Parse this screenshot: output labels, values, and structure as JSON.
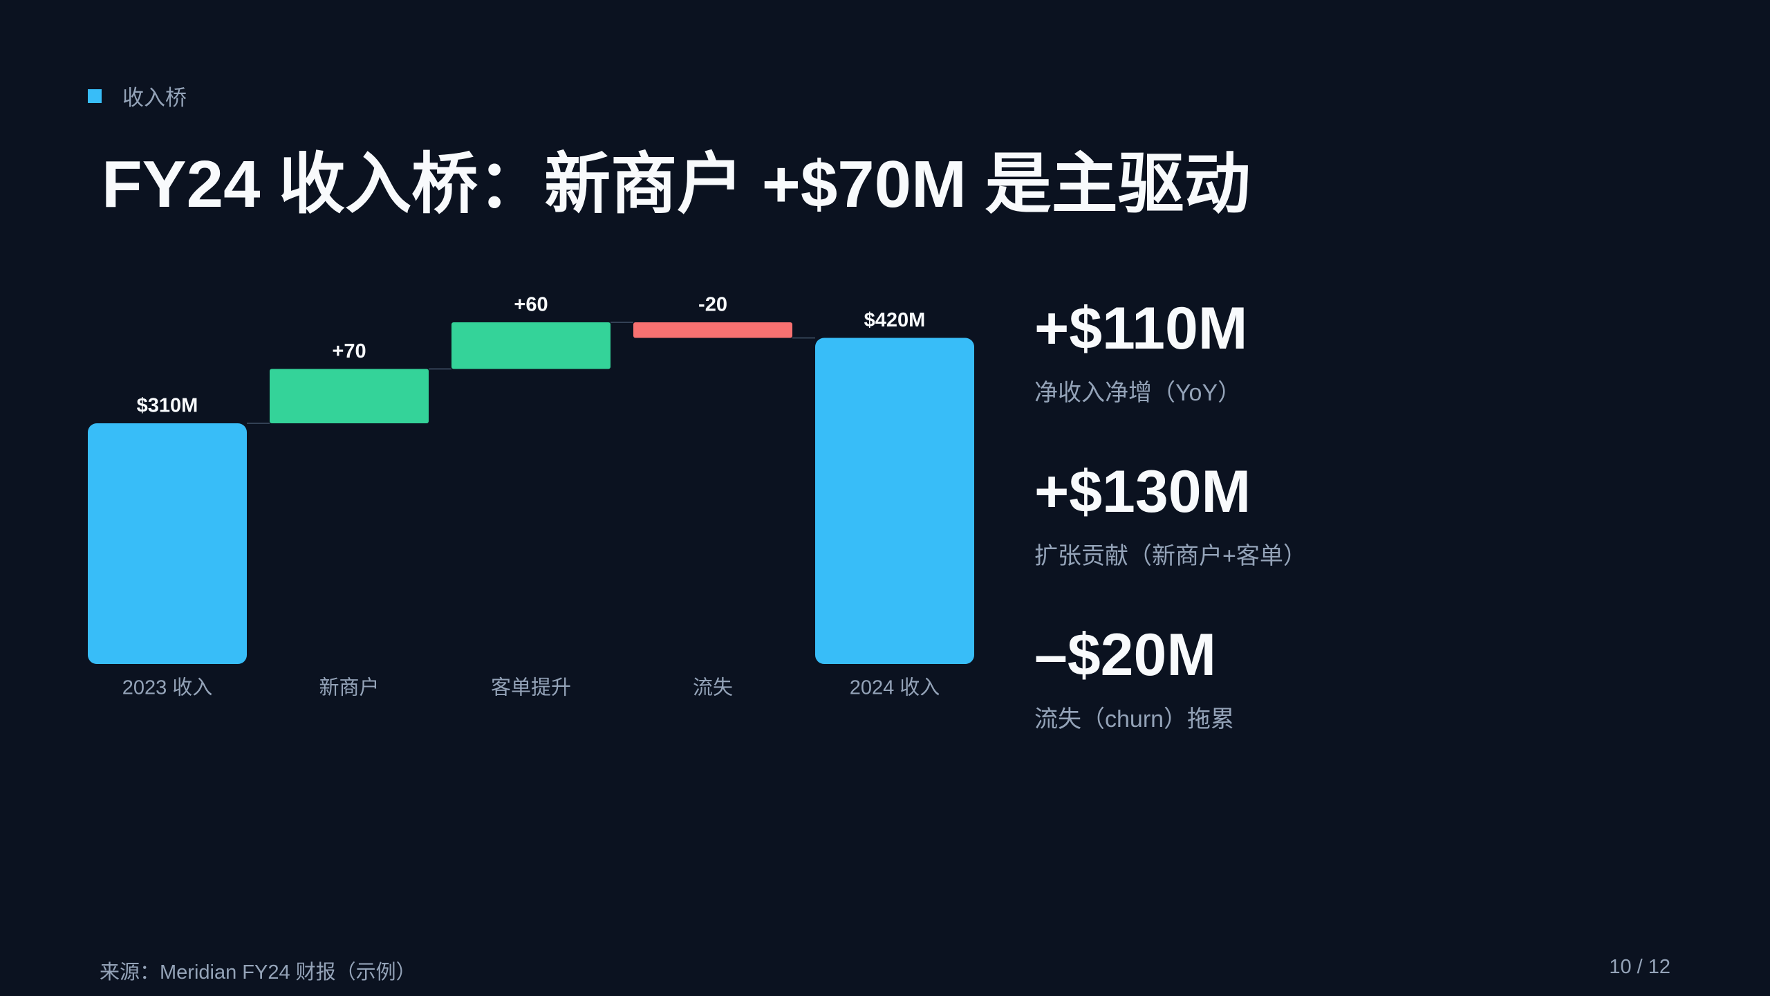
{
  "header": {
    "tag": "收入桥",
    "title": "FY24 收入桥：新商户 +$70M 是主驱动"
  },
  "chart_data": {
    "type": "waterfall",
    "categories": [
      "2023 收入",
      "新商户",
      "客单提升",
      "流失",
      "2024 收入"
    ],
    "values": [
      310,
      70,
      60,
      -20,
      420
    ],
    "value_labels": [
      "$310M",
      "+70",
      "+60",
      "-20",
      "$420M"
    ],
    "colors": {
      "total": "#38bdf8",
      "increase": "#34d399",
      "decrease": "#f87171"
    }
  },
  "kpis": [
    {
      "value": "+$110M",
      "label": "净收入净增（YoY）"
    },
    {
      "value": "+$130M",
      "label": "扩张贡献（新商户+客单）"
    },
    {
      "value": "–$20M",
      "label": "流失（churn）拖累"
    }
  ],
  "footer": {
    "source": "来源：Meridian FY24 财报（示例）",
    "page": "10 / 12"
  }
}
